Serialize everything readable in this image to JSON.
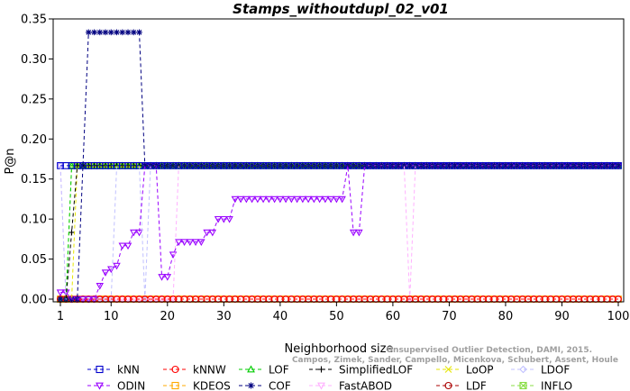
{
  "chart_data": {
    "type": "line",
    "title": "Stamps_withoutdupl_02_v01",
    "xlabel": "Neighborhood size",
    "ylabel": "P@n",
    "xlim": [
      1,
      100
    ],
    "ylim": [
      0,
      0.35
    ],
    "xticks": [
      1,
      10,
      20,
      30,
      40,
      50,
      60,
      70,
      80,
      90,
      100
    ],
    "xtick_labels": [
      "1",
      "10",
      "20",
      "30",
      "40",
      "50",
      "60",
      "70",
      "80",
      "90",
      "100"
    ],
    "yticks": [
      0,
      0.05,
      0.1,
      0.15,
      0.2,
      0.25,
      0.3,
      0.35
    ],
    "ytick_labels": [
      "0.00",
      "0.05",
      "0.10",
      "0.15",
      "0.20",
      "0.25",
      "0.30",
      "0.35"
    ],
    "grid": false,
    "legend_position": "bottom",
    "citation": "Campos, Zimek, Sander, Campello, Micenkova, Schubert, Assent, Houle",
    "citation2": "Unsupervised Outlier Detection, DAMI, 2015.",
    "series": [
      {
        "name": "kNN",
        "color": "#0000cc",
        "marker": "square",
        "segments": [
          {
            "x_start": 1,
            "x_end": 100,
            "y": 0.1667
          }
        ]
      },
      {
        "name": "kNNW",
        "color": "#ff0000",
        "marker": "circle",
        "segments": [
          {
            "x_start": 1,
            "x_end": 100,
            "y": 0.0
          }
        ]
      },
      {
        "name": "LOF",
        "color": "#00cc00",
        "marker": "triangle-up",
        "points": [
          [
            1,
            0.0
          ],
          [
            2,
            0.0
          ],
          [
            3,
            0.1667
          ],
          [
            100,
            0.1667
          ]
        ]
      },
      {
        "name": "SimplifiedLOF",
        "color": "#000000",
        "marker": "plus",
        "points": [
          [
            1,
            0.0
          ],
          [
            2,
            0.0
          ],
          [
            4,
            0.1667
          ],
          [
            100,
            0.1667
          ]
        ]
      },
      {
        "name": "LoOP",
        "color": "#e6e600",
        "marker": "x",
        "points": [
          [
            1,
            0.0
          ],
          [
            3,
            0.0
          ],
          [
            4,
            0.1667
          ],
          [
            100,
            0.1667
          ]
        ]
      },
      {
        "name": "LDOF",
        "color": "#c0c0ff",
        "marker": "diamond",
        "points": [
          [
            1,
            0.1667
          ],
          [
            2,
            0.0
          ],
          [
            10,
            0.0
          ],
          [
            11,
            0.1667
          ],
          [
            15,
            0.1667
          ],
          [
            16,
            0.0
          ],
          [
            17,
            0.1667
          ],
          [
            100,
            0.1667
          ]
        ]
      },
      {
        "name": "ODIN",
        "color": "#9900ff",
        "marker": "triangle-down",
        "points": [
          [
            1,
            0.0083
          ],
          [
            2,
            0.0083
          ],
          [
            3,
            0.0
          ],
          [
            7,
            0.0
          ],
          [
            8,
            0.0167
          ],
          [
            9,
            0.0333
          ],
          [
            10,
            0.0375
          ],
          [
            11,
            0.0417
          ],
          [
            12,
            0.0667
          ],
          [
            13,
            0.0667
          ],
          [
            14,
            0.0833
          ],
          [
            15,
            0.0833
          ],
          [
            16,
            0.1667
          ],
          [
            18,
            0.1667
          ],
          [
            19,
            0.0278
          ],
          [
            20,
            0.0278
          ],
          [
            21,
            0.0556
          ],
          [
            22,
            0.0714
          ],
          [
            26,
            0.0714
          ],
          [
            27,
            0.0833
          ],
          [
            28,
            0.0833
          ],
          [
            29,
            0.1
          ],
          [
            31,
            0.1
          ],
          [
            32,
            0.125
          ],
          [
            51,
            0.125
          ],
          [
            52,
            0.1667
          ],
          [
            53,
            0.0833
          ],
          [
            54,
            0.0833
          ],
          [
            55,
            0.1667
          ],
          [
            100,
            0.1667
          ]
        ]
      },
      {
        "name": "KDEOS",
        "color": "#ffaa00",
        "marker": "square",
        "segments": [
          {
            "x_start": 1,
            "x_end": 100,
            "y": 0.0
          }
        ]
      },
      {
        "name": "COF",
        "color": "#000080",
        "marker": "asterisk",
        "points": [
          [
            1,
            0.0
          ],
          [
            4,
            0.0
          ],
          [
            5,
            0.1667
          ],
          [
            6,
            0.3333
          ],
          [
            15,
            0.3333
          ],
          [
            16,
            0.1667
          ],
          [
            100,
            0.1667
          ]
        ]
      },
      {
        "name": "FastABOD",
        "color": "#ffb0ff",
        "marker": "triangle-down",
        "points": [
          [
            1,
            0.1667
          ],
          [
            2,
            0.0
          ],
          [
            21,
            0.0
          ],
          [
            22,
            0.1667
          ],
          [
            62,
            0.1667
          ],
          [
            63,
            0.0
          ],
          [
            64,
            0.1667
          ],
          [
            100,
            0.1667
          ]
        ]
      },
      {
        "name": "LDF",
        "color": "#aa0000",
        "marker": "circle",
        "segments": [
          {
            "x_start": 1,
            "x_end": 100,
            "y": 0.0
          }
        ]
      },
      {
        "name": "INFLO",
        "color": "#88dd44",
        "marker": "square-x",
        "points": [
          [
            1,
            0.0
          ],
          [
            2,
            0.0
          ],
          [
            3,
            0.1667
          ],
          [
            100,
            0.1667
          ]
        ]
      }
    ]
  }
}
